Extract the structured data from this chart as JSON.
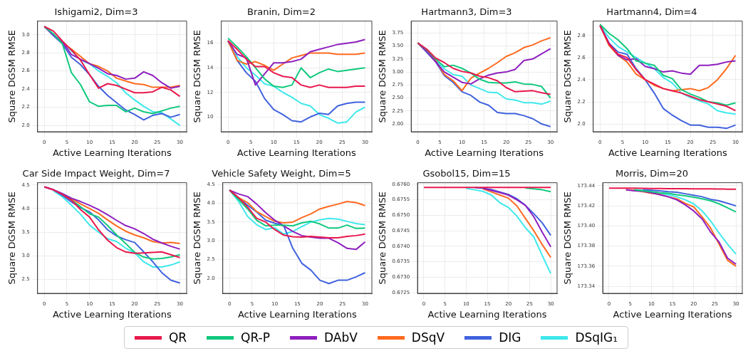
{
  "chart_data": [
    {
      "type": "line",
      "title": "Ishigami2, Dim=3",
      "xlabel": "Active Learning Iterations",
      "ylabel": "Square DGSM RMSE",
      "x": [
        0,
        2,
        4,
        6,
        8,
        10,
        12,
        14,
        16,
        18,
        20,
        22,
        24,
        26,
        28,
        30
      ],
      "xlim": [
        -1.5,
        31.5
      ],
      "xticks": [
        0,
        5,
        10,
        15,
        20,
        25,
        30
      ],
      "ylim": [
        1.93,
        3.15
      ],
      "yticks": [
        {
          "value": 2.0,
          "label": "2.0"
        },
        2.2,
        2.4,
        2.6,
        2.8,
        {
          "value": 3.0,
          "label": "3.0"
        }
      ],
      "grid": true,
      "marker": "none",
      "legend": "bottom",
      "series": [
        {
          "name": "QR",
          "color": "#e8184d",
          "values": [
            3.09,
            3.04,
            2.93,
            2.83,
            2.72,
            2.56,
            2.41,
            2.46,
            2.44,
            2.4,
            2.36,
            2.36,
            2.37,
            2.42,
            2.39,
            2.32
          ]
        },
        {
          "name": "QR-P",
          "color": "#10c97d",
          "values": [
            3.09,
            3.01,
            2.9,
            2.58,
            2.45,
            2.26,
            2.21,
            2.22,
            2.22,
            2.15,
            2.19,
            2.15,
            2.13,
            2.16,
            2.19,
            2.21
          ]
        },
        {
          "name": "DAbV",
          "color": "#8e1fbf",
          "values": [
            3.09,
            3.0,
            2.92,
            2.78,
            2.73,
            2.68,
            2.63,
            2.57,
            2.55,
            2.51,
            2.52,
            2.59,
            2.55,
            2.47,
            2.41,
            2.43
          ]
        },
        {
          "name": "DSqV",
          "color": "#ff6a1f",
          "values": [
            null,
            null,
            2.91,
            2.84,
            2.76,
            2.68,
            2.65,
            2.6,
            2.52,
            2.49,
            2.46,
            2.45,
            2.42,
            2.42,
            2.42,
            2.44
          ]
        },
        {
          "name": "DIG",
          "color": "#4062dd",
          "values": [
            3.09,
            2.99,
            2.9,
            2.75,
            2.67,
            2.56,
            2.43,
            2.33,
            2.25,
            2.17,
            2.12,
            2.06,
            2.11,
            2.13,
            2.09,
            2.12
          ]
        },
        {
          "name": "DSqIG₁",
          "color": "#3ee8ec",
          "values": [
            null,
            3.0,
            2.92,
            2.82,
            2.72,
            2.68,
            2.6,
            2.54,
            2.47,
            2.36,
            2.28,
            2.21,
            2.15,
            2.14,
            2.07,
            2.0
          ]
        }
      ]
    },
    {
      "type": "line",
      "title": "Branin, Dim=2",
      "xlabel": "Active Learning Iterations",
      "ylabel": "Square DGSM RMSE",
      "x": [
        0,
        2,
        4,
        6,
        8,
        10,
        12,
        14,
        16,
        18,
        20,
        22,
        24,
        26,
        28,
        30
      ],
      "xlim": [
        -1.5,
        31.5
      ],
      "xticks": [
        0,
        5,
        10,
        15,
        20,
        25,
        30
      ],
      "ylim": [
        8.8,
        17.8
      ],
      "yticks": [
        10,
        12,
        14,
        16
      ],
      "grid": true,
      "marker": "none",
      "series": [
        {
          "color": "#e8184d",
          "values": [
            16.2,
            15.5,
            14.7,
            14.1,
            14.1,
            13.6,
            13.3,
            13.2,
            12.6,
            12.4,
            12.6,
            12.4,
            12.4,
            12.4,
            12.5,
            12.5
          ]
        },
        {
          "color": "#10c97d",
          "values": [
            16.4,
            15.7,
            14.9,
            14.0,
            13.1,
            12.5,
            12.4,
            12.6,
            14.0,
            13.2,
            13.6,
            13.9,
            13.7,
            13.8,
            13.9,
            14.0
          ]
        },
        {
          "color": "#8e1fbf",
          "values": [
            16.2,
            15.1,
            14.8,
            12.6,
            13.5,
            14.4,
            14.4,
            14.5,
            14.7,
            15.3,
            15.5,
            15.7,
            15.9,
            16.0,
            16.1,
            16.3
          ]
        },
        {
          "color": "#ff6a1f",
          "values": [
            16.2,
            14.6,
            14.3,
            14.5,
            14.2,
            13.8,
            14.3,
            14.8,
            15.0,
            15.2,
            15.2,
            15.2,
            15.1,
            15.1,
            15.1,
            15.2
          ]
        },
        {
          "color": "#4062dd",
          "values": [
            16.2,
            14.6,
            13.6,
            12.9,
            11.5,
            10.6,
            10.2,
            9.7,
            9.6,
            10.0,
            10.3,
            10.2,
            10.9,
            11.1,
            11.2,
            11.2
          ]
        },
        {
          "color": "#3ee8ec",
          "values": [
            16.2,
            14.9,
            14.0,
            13.4,
            12.7,
            12.5,
            12.0,
            11.6,
            11.1,
            10.9,
            10.2,
            9.9,
            9.5,
            9.6,
            10.4,
            10.8
          ]
        }
      ]
    },
    {
      "type": "line",
      "title": "Hartmann3, Dim=3",
      "xlabel": "Active Learning Iterations",
      "ylabel": "Square DGSM RMSE",
      "x": [
        0,
        2,
        4,
        6,
        8,
        10,
        12,
        14,
        16,
        18,
        20,
        22,
        24,
        26,
        28,
        30
      ],
      "xlim": [
        -1.5,
        31.5
      ],
      "xticks": [
        0,
        5,
        10,
        15,
        20,
        25,
        30
      ],
      "ylim": [
        1.85,
        3.98
      ],
      "yticks": [
        {
          "value": 2.0,
          "label": "2.00"
        },
        2.25,
        {
          "value": 2.5,
          "label": "2.50"
        },
        2.75,
        {
          "value": 3.0,
          "label": "3.00"
        },
        3.25,
        {
          "value": 3.5,
          "label": "3.50"
        },
        3.75
      ],
      "grid": true,
      "marker": "none",
      "series": [
        {
          "color": "#e8184d",
          "values": [
            3.56,
            3.44,
            3.27,
            3.18,
            3.07,
            3.01,
            2.98,
            2.92,
            2.89,
            2.83,
            2.7,
            2.62,
            2.63,
            2.64,
            2.6,
            2.57
          ]
        },
        {
          "color": "#10c97d",
          "values": [
            3.56,
            3.43,
            3.25,
            3.1,
            3.13,
            3.07,
            2.98,
            2.86,
            2.8,
            2.79,
            2.79,
            2.81,
            2.77,
            2.76,
            2.72,
            2.5
          ]
        },
        {
          "color": "#8e1fbf",
          "values": [
            3.56,
            3.4,
            3.2,
            3.0,
            2.9,
            2.8,
            2.77,
            2.87,
            2.94,
            2.98,
            3.0,
            3.05,
            3.22,
            3.25,
            3.35,
            3.45
          ]
        },
        {
          "color": "#ff6a1f",
          "values": [
            3.56,
            3.4,
            3.22,
            2.95,
            2.83,
            2.64,
            2.88,
            2.98,
            3.07,
            3.18,
            3.3,
            3.37,
            3.47,
            3.52,
            3.6,
            3.66
          ]
        },
        {
          "color": "#4062dd",
          "values": [
            3.56,
            3.38,
            3.2,
            2.93,
            2.8,
            2.62,
            2.55,
            2.42,
            2.36,
            2.22,
            2.2,
            2.2,
            2.16,
            2.1,
            2.0,
            1.95
          ]
        },
        {
          "color": "#3ee8ec",
          "values": [
            null,
            3.38,
            3.22,
            3.06,
            2.95,
            2.92,
            2.75,
            2.68,
            2.61,
            2.6,
            2.48,
            2.46,
            2.41,
            2.41,
            2.38,
            2.44
          ]
        }
      ]
    },
    {
      "type": "line",
      "title": "Hartmann4, Dim=4",
      "xlabel": "Active Learning Iterations",
      "ylabel": "Square DGSM RMSE",
      "x": [
        0,
        2,
        4,
        6,
        8,
        10,
        12,
        14,
        16,
        18,
        20,
        22,
        24,
        26,
        28,
        30
      ],
      "xlim": [
        -1.5,
        31.5
      ],
      "xticks": [
        0,
        5,
        10,
        15,
        20,
        25,
        30
      ],
      "ylim": [
        1.93,
        2.93
      ],
      "yticks": [
        {
          "value": 2.0,
          "label": "2.0"
        },
        2.2,
        2.4,
        2.6,
        2.8
      ],
      "grid": true,
      "marker": "none",
      "series": [
        {
          "color": "#e8184d",
          "values": [
            2.89,
            2.72,
            2.63,
            2.6,
            2.49,
            2.4,
            2.36,
            2.32,
            2.3,
            2.28,
            2.25,
            2.22,
            2.2,
            2.18,
            2.16,
            2.12
          ]
        },
        {
          "color": "#10c97d",
          "values": [
            2.9,
            2.82,
            2.76,
            2.68,
            2.57,
            2.55,
            2.53,
            2.44,
            2.41,
            2.31,
            2.27,
            2.24,
            2.2,
            2.19,
            2.17,
            2.19
          ]
        },
        {
          "color": "#8e1fbf",
          "values": [
            2.89,
            2.73,
            2.62,
            2.58,
            2.59,
            2.52,
            2.5,
            2.47,
            2.48,
            2.46,
            2.45,
            2.53,
            2.53,
            2.54,
            2.56,
            2.57
          ]
        },
        {
          "color": "#ff6a1f",
          "values": [
            2.89,
            2.71,
            2.62,
            2.56,
            2.45,
            2.4,
            2.35,
            2.32,
            2.3,
            2.31,
            2.32,
            2.3,
            2.33,
            2.4,
            2.5,
            2.62
          ]
        },
        {
          "color": "#4062dd",
          "values": [
            2.89,
            2.73,
            2.65,
            2.63,
            2.5,
            2.4,
            2.28,
            2.14,
            2.08,
            2.03,
            1.99,
            1.99,
            1.97,
            1.97,
            1.96,
            1.99
          ]
        },
        {
          "color": "#3ee8ec",
          "values": [
            2.89,
            2.78,
            2.7,
            2.65,
            2.6,
            2.55,
            2.5,
            2.42,
            2.37,
            2.28,
            2.24,
            2.21,
            2.18,
            2.12,
            2.1,
            2.09
          ]
        }
      ]
    },
    {
      "type": "line",
      "title": "Car Side Impact Weight, Dim=7",
      "xlabel": "Active Learning Iterations",
      "ylabel": "Square DGSM RMSE",
      "x": [
        0,
        2,
        4,
        6,
        8,
        10,
        12,
        14,
        16,
        18,
        20,
        22,
        24,
        26,
        28,
        30
      ],
      "xlim": [
        -1.5,
        31.5
      ],
      "xticks": [
        0,
        5,
        10,
        15,
        20,
        25,
        30
      ],
      "ylim": [
        2.2,
        4.55
      ],
      "yticks": [
        2.5,
        {
          "value": 3.0,
          "label": "3.0"
        },
        3.5,
        {
          "value": 4.0,
          "label": "4.0"
        },
        4.5
      ],
      "grid": true,
      "marker": "none",
      "series": [
        {
          "color": "#e8184d",
          "values": [
            4.46,
            4.4,
            4.3,
            4.18,
            3.98,
            3.82,
            3.55,
            3.33,
            3.17,
            3.08,
            3.05,
            3.06,
            3.07,
            3.08,
            3.02,
            2.96
          ]
        },
        {
          "color": "#10c97d",
          "values": [
            null,
            null,
            4.3,
            4.18,
            4.04,
            3.89,
            3.82,
            3.64,
            3.44,
            3.26,
            3.07,
            2.97,
            2.93,
            2.94,
            2.97,
            3.02
          ]
        },
        {
          "color": "#8e1fbf",
          "values": [
            4.46,
            4.4,
            4.32,
            4.22,
            4.15,
            4.07,
            3.98,
            3.87,
            3.75,
            3.64,
            3.57,
            3.47,
            3.35,
            3.27,
            3.2,
            3.14
          ]
        },
        {
          "color": "#ff6a1f",
          "values": [
            null,
            null,
            4.3,
            4.21,
            4.1,
            4.0,
            3.9,
            3.76,
            3.63,
            3.52,
            3.44,
            3.38,
            3.3,
            3.27,
            3.28,
            3.26
          ]
        },
        {
          "color": "#4062dd",
          "values": [
            4.46,
            4.4,
            4.28,
            4.14,
            4.02,
            3.93,
            3.76,
            3.55,
            3.42,
            3.34,
            3.28,
            3.08,
            2.87,
            2.64,
            2.48,
            2.42
          ]
        },
        {
          "color": "#3ee8ec",
          "values": [
            null,
            4.38,
            4.25,
            4.07,
            3.88,
            3.65,
            3.5,
            3.36,
            3.3,
            3.16,
            3.06,
            2.87,
            2.76,
            2.76,
            2.8,
            2.87
          ]
        }
      ]
    },
    {
      "type": "line",
      "title": "Vehicle Safety Weight, Dim=5",
      "xlabel": "Active Learning Iterations",
      "ylabel": "Square DGSM RMSE",
      "x": [
        0,
        2,
        4,
        6,
        8,
        10,
        12,
        14,
        16,
        18,
        20,
        22,
        24,
        26,
        28,
        30
      ],
      "xlim": [
        -1.5,
        31.5
      ],
      "xticks": [
        0,
        5,
        10,
        15,
        20,
        25,
        30
      ],
      "ylim": [
        1.6,
        4.55
      ],
      "yticks": [
        {
          "value": 2.0,
          "label": "2.0"
        },
        2.5,
        {
          "value": 3.0,
          "label": "3.0"
        },
        3.5,
        {
          "value": 4.0,
          "label": "4.0"
        },
        4.5
      ],
      "grid": true,
      "marker": "none",
      "series": [
        {
          "color": "#e8184d",
          "values": [
            4.35,
            4.15,
            3.9,
            3.6,
            3.5,
            3.3,
            3.15,
            3.11,
            3.1,
            3.12,
            3.1,
            3.08,
            3.08,
            3.12,
            3.14,
            3.18
          ]
        },
        {
          "color": "#10c97d",
          "values": [
            4.35,
            4.1,
            3.85,
            3.55,
            3.4,
            3.42,
            3.42,
            3.4,
            3.48,
            3.52,
            3.45,
            3.34,
            3.34,
            3.42,
            3.33,
            3.34
          ]
        },
        {
          "color": "#8e1fbf",
          "values": [
            4.35,
            4.25,
            4.18,
            3.98,
            3.75,
            3.55,
            3.4,
            3.25,
            3.14,
            3.1,
            3.07,
            3.07,
            2.95,
            2.8,
            2.77,
            2.97
          ]
        },
        {
          "color": "#ff6a1f",
          "values": [
            4.35,
            4.15,
            4.02,
            3.78,
            3.65,
            3.52,
            3.48,
            3.5,
            3.62,
            3.72,
            3.85,
            3.92,
            3.98,
            4.05,
            4.02,
            3.94
          ]
        },
        {
          "color": "#4062dd",
          "values": [
            4.35,
            4.15,
            3.95,
            3.77,
            3.55,
            3.47,
            3.4,
            2.8,
            2.4,
            2.22,
            1.95,
            1.86,
            1.95,
            1.95,
            2.04,
            2.15
          ]
        },
        {
          "color": "#3ee8ec",
          "values": [
            4.35,
            4.05,
            3.65,
            3.43,
            3.3,
            3.35,
            3.18,
            3.25,
            3.38,
            3.5,
            3.56,
            3.6,
            3.58,
            3.52,
            3.46,
            3.43
          ]
        }
      ]
    },
    {
      "type": "line",
      "title": "Gsobol15, Dim=15",
      "xlabel": "Active Learning Iterations",
      "ylabel": "Square DGSM RMSE",
      "x": [
        0,
        2,
        4,
        6,
        8,
        10,
        12,
        14,
        16,
        18,
        20,
        22,
        24,
        26,
        28,
        30
      ],
      "xlim": [
        -1.5,
        31.5
      ],
      "xticks": [
        0,
        5,
        10,
        15,
        20,
        25,
        30
      ],
      "ylim": [
        0.67248,
        0.67605
      ],
      "yticks": [
        0.6725,
        {
          "value": 0.673,
          "label": "0.6730"
        },
        0.6735,
        {
          "value": 0.674,
          "label": "0.6740"
        },
        0.6745,
        {
          "value": 0.675,
          "label": "0.6750"
        },
        0.6755,
        {
          "value": 0.676,
          "label": "0.6760"
        }
      ],
      "grid": true,
      "marker": "none",
      "series": [
        {
          "color": "#e8184d",
          "values": [
            0.6759,
            0.6759,
            0.6759,
            0.6759,
            0.6759,
            0.6759,
            0.6759,
            0.6759,
            0.6759,
            0.6759,
            0.6759,
            0.6759,
            0.6759,
            0.6759,
            0.6759,
            0.6759
          ]
        },
        {
          "color": "#10c97d",
          "values": [
            null,
            null,
            null,
            null,
            null,
            null,
            null,
            null,
            null,
            null,
            null,
            null,
            0.67588,
            0.67585,
            0.67582,
            0.67576
          ]
        },
        {
          "color": "#8e1fbf",
          "values": [
            null,
            null,
            null,
            null,
            null,
            null,
            null,
            0.67587,
            0.6758,
            0.67573,
            0.67565,
            0.6755,
            0.67532,
            0.67495,
            0.67445,
            0.67398
          ]
        },
        {
          "color": "#ff6a1f",
          "values": [
            null,
            null,
            null,
            null,
            null,
            null,
            null,
            0.67585,
            0.67575,
            0.67565,
            0.67555,
            0.6753,
            0.6749,
            0.6745,
            0.67405,
            0.67364
          ]
        },
        {
          "color": "#4062dd",
          "values": [
            null,
            null,
            null,
            null,
            null,
            null,
            0.67589,
            0.67587,
            0.67583,
            0.67575,
            0.67567,
            0.67553,
            0.67532,
            0.67505,
            0.67475,
            0.67435
          ]
        },
        {
          "color": "#3ee8ec",
          "values": [
            null,
            null,
            null,
            null,
            null,
            0.67587,
            0.67582,
            0.67577,
            0.67565,
            0.6754,
            0.67525,
            0.67497,
            0.6746,
            0.6743,
            0.6737,
            0.67312
          ]
        }
      ]
    },
    {
      "type": "line",
      "title": "Morris, Dim=20",
      "xlabel": "Active Learning Iterations",
      "ylabel": "Square DGSM RMSE",
      "x": [
        0,
        2,
        4,
        6,
        8,
        10,
        12,
        14,
        16,
        18,
        20,
        22,
        24,
        26,
        28,
        30
      ],
      "xlim": [
        -1.5,
        31.5
      ],
      "xticks": [
        0,
        5,
        10,
        15,
        20,
        25,
        30
      ],
      "ylim": [
        173.333,
        173.443
      ],
      "yticks": [
        173.34,
        173.36,
        173.38,
        {
          "value": 173.4,
          "label": "173.40"
        },
        173.42,
        173.44
      ],
      "grid": true,
      "marker": "none",
      "series": [
        {
          "color": "#e8184d",
          "values": [
            173.4375,
            173.4375,
            173.4375,
            173.4375,
            173.4374,
            173.4373,
            173.4372,
            173.4371,
            173.437,
            173.437,
            173.4369,
            173.4368,
            173.4368,
            173.4367,
            173.4366,
            173.4365
          ]
        },
        {
          "color": "#10c97d",
          "values": [
            null,
            null,
            null,
            173.436,
            173.435,
            173.434,
            173.433,
            173.4325,
            173.431,
            173.43,
            173.4285,
            173.427,
            173.425,
            173.422,
            173.418,
            173.414
          ]
        },
        {
          "color": "#8e1fbf",
          "values": [
            null,
            null,
            173.436,
            173.435,
            173.4345,
            173.433,
            173.431,
            173.429,
            173.426,
            173.421,
            173.415,
            173.407,
            173.394,
            173.384,
            173.368,
            173.362
          ]
        },
        {
          "color": "#ff6a1f",
          "values": [
            null,
            null,
            173.436,
            173.4355,
            173.434,
            173.4325,
            173.4315,
            173.429,
            173.427,
            173.4225,
            173.419,
            173.409,
            173.398,
            173.382,
            173.366,
            173.36
          ]
        },
        {
          "color": "#4062dd",
          "values": [
            null,
            null,
            null,
            null,
            173.436,
            173.4355,
            173.435,
            173.434,
            173.4335,
            173.432,
            173.4305,
            173.429,
            173.4265,
            173.425,
            173.4225,
            173.42
          ]
        },
        {
          "color": "#3ee8ec",
          "values": [
            null,
            null,
            null,
            173.436,
            173.4355,
            173.434,
            173.4325,
            173.431,
            173.429,
            173.426,
            173.422,
            173.415,
            173.405,
            173.393,
            173.382,
            173.372
          ]
        }
      ]
    }
  ]
}
